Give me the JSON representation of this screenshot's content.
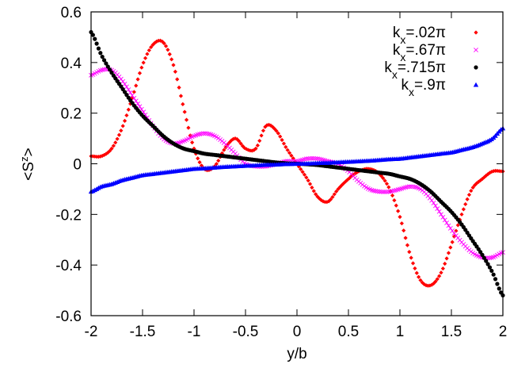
{
  "chart_data": {
    "type": "scatter",
    "xlabel": "y/b",
    "ylabel": "<S^z>",
    "xlim": [
      -2,
      2
    ],
    "ylim": [
      -0.6,
      0.6
    ],
    "grid": false,
    "legend_position": "top-right",
    "x_ticks": [
      "-2",
      "-1.5",
      "-1",
      "-0.5",
      "0",
      "0.5",
      "1",
      "1.5",
      "2"
    ],
    "y_ticks": [
      "-0.6",
      "-0.4",
      "-0.2",
      "0",
      "0.2",
      "0.4",
      "0.6"
    ],
    "series": [
      {
        "name_main": "k",
        "name_sub": "x",
        "name_rest": "=.02π",
        "color": "#ff0000",
        "marker": "diamond",
        "x": [
          -2.0,
          -1.9,
          -1.8,
          -1.7,
          -1.6,
          -1.5,
          -1.4,
          -1.3,
          -1.2,
          -1.1,
          -1.0,
          -0.9,
          -0.8,
          -0.7,
          -0.6,
          -0.5,
          -0.4,
          -0.3,
          -0.2,
          -0.1,
          0.0,
          0.1,
          0.2,
          0.3,
          0.4,
          0.5,
          0.6,
          0.7,
          0.8,
          0.9,
          1.0,
          1.1,
          1.2,
          1.3,
          1.4,
          1.5,
          1.6,
          1.7,
          1.8,
          1.9,
          2.0
        ],
        "y": [
          0.03,
          0.03,
          0.06,
          0.14,
          0.26,
          0.39,
          0.47,
          0.48,
          0.39,
          0.22,
          0.06,
          -0.02,
          -0.01,
          0.06,
          0.1,
          0.06,
          0.06,
          0.15,
          0.13,
          0.06,
          0.0,
          -0.06,
          -0.13,
          -0.15,
          -0.1,
          -0.06,
          -0.03,
          -0.02,
          -0.04,
          -0.1,
          -0.21,
          -0.36,
          -0.46,
          -0.48,
          -0.43,
          -0.32,
          -0.2,
          -0.1,
          -0.06,
          -0.03,
          -0.03
        ]
      },
      {
        "name_main": "k",
        "name_sub": "x",
        "name_rest": "=.67π",
        "color": "#ff00ff",
        "marker": "cross",
        "x": [
          -2.0,
          -1.9,
          -1.8,
          -1.7,
          -1.6,
          -1.5,
          -1.4,
          -1.3,
          -1.2,
          -1.1,
          -1.0,
          -0.9,
          -0.8,
          -0.7,
          -0.6,
          -0.5,
          -0.4,
          -0.3,
          -0.2,
          -0.1,
          0.0,
          0.1,
          0.2,
          0.3,
          0.4,
          0.5,
          0.6,
          0.7,
          0.8,
          0.9,
          1.0,
          1.1,
          1.2,
          1.3,
          1.4,
          1.5,
          1.6,
          1.7,
          1.8,
          1.9,
          2.0
        ],
        "y": [
          0.35,
          0.37,
          0.37,
          0.33,
          0.27,
          0.21,
          0.15,
          0.1,
          0.08,
          0.09,
          0.11,
          0.12,
          0.11,
          0.08,
          0.04,
          0.0,
          -0.01,
          -0.01,
          0.0,
          0.01,
          0.01,
          0.02,
          0.02,
          0.01,
          0.0,
          -0.03,
          -0.07,
          -0.1,
          -0.11,
          -0.11,
          -0.1,
          -0.09,
          -0.1,
          -0.14,
          -0.2,
          -0.26,
          -0.31,
          -0.35,
          -0.37,
          -0.37,
          -0.35
        ]
      },
      {
        "name_main": "k",
        "name_sub": "x",
        "name_rest": "=.715π",
        "color": "#000000",
        "marker": "circle",
        "x": [
          -2.0,
          -1.9,
          -1.8,
          -1.7,
          -1.6,
          -1.5,
          -1.4,
          -1.3,
          -1.2,
          -1.1,
          -1.0,
          -0.9,
          -0.8,
          -0.7,
          -0.6,
          -0.5,
          -0.4,
          -0.3,
          -0.2,
          -0.1,
          0.0,
          0.1,
          0.2,
          0.3,
          0.4,
          0.5,
          0.6,
          0.7,
          0.8,
          0.9,
          1.0,
          1.1,
          1.2,
          1.3,
          1.4,
          1.5,
          1.6,
          1.7,
          1.8,
          1.9,
          2.0
        ],
        "y": [
          0.52,
          0.43,
          0.36,
          0.3,
          0.24,
          0.19,
          0.15,
          0.11,
          0.08,
          0.06,
          0.05,
          0.04,
          0.035,
          0.03,
          0.025,
          0.02,
          0.015,
          0.01,
          0.005,
          0.002,
          0.0,
          -0.002,
          -0.005,
          -0.01,
          -0.015,
          -0.02,
          -0.025,
          -0.03,
          -0.035,
          -0.04,
          -0.05,
          -0.06,
          -0.08,
          -0.11,
          -0.15,
          -0.19,
          -0.24,
          -0.3,
          -0.36,
          -0.43,
          -0.52
        ]
      },
      {
        "name_main": "k",
        "name_sub": "x",
        "name_rest": "=.9π",
        "color": "#0000ff",
        "marker": "triangle",
        "x": [
          -2.0,
          -1.9,
          -1.8,
          -1.7,
          -1.6,
          -1.5,
          -1.4,
          -1.3,
          -1.2,
          -1.1,
          -1.0,
          -0.9,
          -0.8,
          -0.7,
          -0.6,
          -0.5,
          -0.4,
          -0.3,
          -0.2,
          -0.1,
          0.0,
          0.1,
          0.2,
          0.3,
          0.4,
          0.5,
          0.6,
          0.7,
          0.8,
          0.9,
          1.0,
          1.1,
          1.2,
          1.3,
          1.4,
          1.5,
          1.6,
          1.7,
          1.8,
          1.9,
          2.0
        ],
        "y": [
          -0.11,
          -0.09,
          -0.08,
          -0.065,
          -0.055,
          -0.045,
          -0.04,
          -0.035,
          -0.03,
          -0.025,
          -0.02,
          -0.018,
          -0.015,
          -0.012,
          -0.01,
          -0.008,
          -0.006,
          -0.004,
          -0.003,
          -0.001,
          0.0,
          0.001,
          0.003,
          0.004,
          0.006,
          0.008,
          0.01,
          0.012,
          0.015,
          0.018,
          0.02,
          0.025,
          0.03,
          0.035,
          0.04,
          0.045,
          0.055,
          0.065,
          0.08,
          0.1,
          0.14
        ]
      }
    ]
  }
}
